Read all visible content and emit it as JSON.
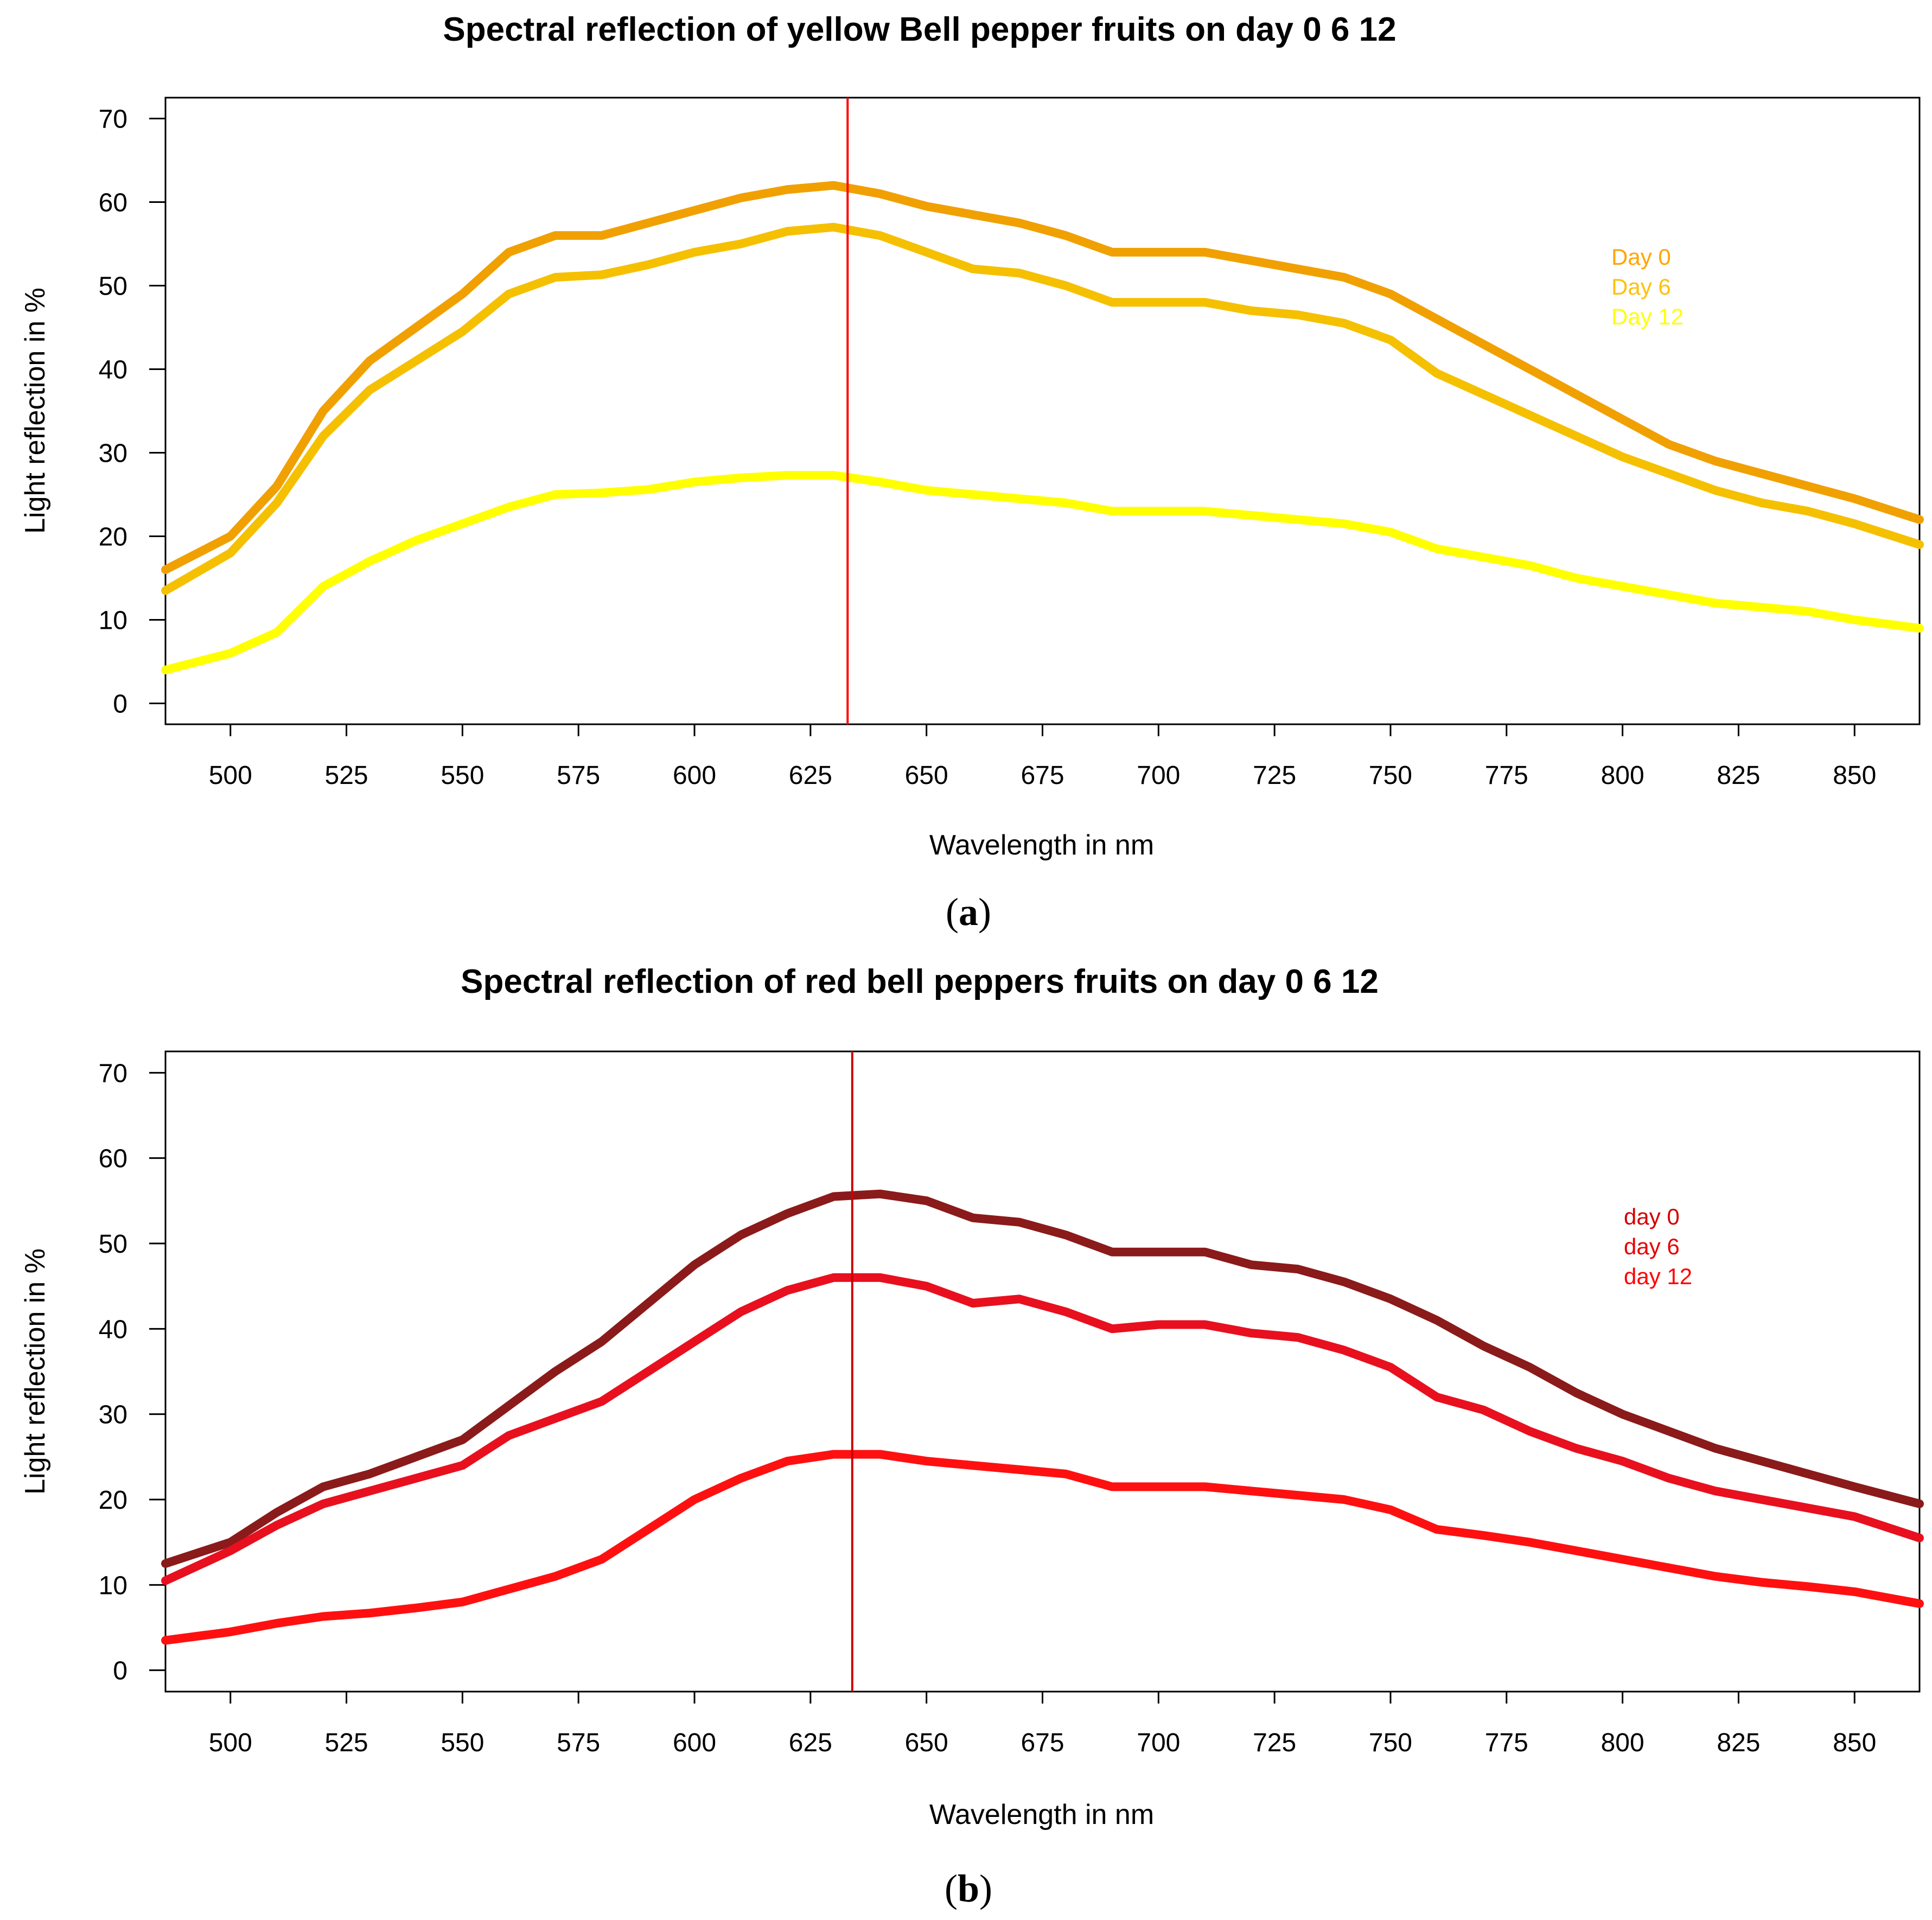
{
  "chart_data": [
    {
      "type": "line",
      "panel_label_open": "(",
      "panel_label_letter": "a",
      "panel_label_close": ")",
      "title": "Spectral reflection of yellow Bell pepper fruits on day 0  6  12",
      "xlabel": "Wavelength in nm",
      "ylabel": "Light reflection in %",
      "xlim": [
        486,
        864
      ],
      "ylim": [
        -2.5,
        72.5
      ],
      "xticks": [
        500,
        525,
        550,
        575,
        600,
        625,
        650,
        675,
        700,
        725,
        750,
        775,
        800,
        825,
        850
      ],
      "yticks": [
        0,
        10,
        20,
        30,
        40,
        50,
        60,
        70
      ],
      "vline_x": 633,
      "vline_color": "#ff0000",
      "legend_position": "right",
      "legend": [
        {
          "label": "Day 0",
          "color": "#ffa500"
        },
        {
          "label": "Day 6",
          "color": "#ffc107"
        },
        {
          "label": "Day 12",
          "color": "#ffff00"
        }
      ],
      "x": [
        486,
        500,
        510,
        520,
        530,
        540,
        550,
        560,
        570,
        580,
        590,
        600,
        610,
        620,
        630,
        640,
        650,
        660,
        670,
        680,
        690,
        700,
        710,
        720,
        730,
        740,
        750,
        760,
        770,
        780,
        790,
        800,
        810,
        820,
        830,
        840,
        850,
        864
      ],
      "series": [
        {
          "name": "Day 0",
          "color": "#f0a000",
          "values": [
            16,
            20,
            26,
            35,
            41,
            45,
            49,
            54,
            56,
            56,
            57.5,
            59,
            60.5,
            61.5,
            62,
            61,
            59.5,
            58.5,
            57.5,
            56,
            54,
            54,
            54,
            53,
            52,
            51,
            49,
            46,
            43,
            40,
            37,
            34,
            31,
            29,
            27.5,
            26,
            24.5,
            22
          ]
        },
        {
          "name": "Day 6",
          "color": "#f5c000",
          "values": [
            13.5,
            18,
            24,
            32,
            37.5,
            41,
            44.5,
            49,
            51,
            51.3,
            52.5,
            54,
            55,
            56.5,
            57,
            56,
            54,
            52,
            51.5,
            50,
            48,
            48,
            48,
            47,
            46.5,
            45.5,
            43.5,
            39.5,
            37,
            34.5,
            32,
            29.5,
            27.5,
            25.5,
            24,
            23,
            21.5,
            19
          ]
        },
        {
          "name": "Day 12",
          "color": "#ffff00",
          "values": [
            4,
            6,
            8.5,
            14,
            17,
            19.5,
            21.5,
            23.5,
            25,
            25.2,
            25.6,
            26.5,
            27,
            27.3,
            27.3,
            26.5,
            25.5,
            25,
            24.5,
            24,
            23,
            23,
            23,
            22.5,
            22,
            21.5,
            20.5,
            18.5,
            17.5,
            16.5,
            15,
            14,
            13,
            12,
            11.5,
            11,
            10,
            9
          ]
        }
      ]
    },
    {
      "type": "line",
      "panel_label_open": "(",
      "panel_label_letter": "b",
      "panel_label_close": ")",
      "title": "Spectral reflection of red bell peppers fruits on day 0  6  12",
      "xlabel": "Wavelength in nm",
      "ylabel": "Light reflection in %",
      "xlim": [
        486,
        864
      ],
      "ylim": [
        -2.5,
        72.5
      ],
      "xticks": [
        500,
        525,
        550,
        575,
        600,
        625,
        650,
        675,
        700,
        725,
        750,
        775,
        800,
        825,
        850
      ],
      "yticks": [
        0,
        10,
        20,
        30,
        40,
        50,
        60,
        70
      ],
      "vline_x": 634,
      "vline_color": "#cc0000",
      "legend_position": "right",
      "legend": [
        {
          "label": "day 0",
          "color": "#d40000"
        },
        {
          "label": "day 6",
          "color": "#e80000"
        },
        {
          "label": "day 12",
          "color": "#ff0000"
        }
      ],
      "x": [
        486,
        500,
        510,
        520,
        530,
        540,
        550,
        560,
        570,
        580,
        590,
        600,
        610,
        620,
        630,
        640,
        650,
        660,
        670,
        680,
        690,
        700,
        710,
        720,
        730,
        740,
        750,
        760,
        770,
        780,
        790,
        800,
        810,
        820,
        830,
        840,
        850,
        864
      ],
      "series": [
        {
          "name": "day 0",
          "color": "#8b1a1a",
          "values": [
            12.5,
            15,
            18.5,
            21.5,
            23,
            25,
            27,
            31,
            35,
            38.5,
            43,
            47.5,
            51,
            53.5,
            55.5,
            55.8,
            55,
            53,
            52.5,
            51,
            49,
            49,
            49,
            47.5,
            47,
            45.5,
            43.5,
            41,
            38,
            35.5,
            32.5,
            30,
            28,
            26,
            24.5,
            23,
            21.5,
            19.5
          ]
        },
        {
          "name": "day 6",
          "color": "#e8101e",
          "values": [
            10.5,
            14,
            17,
            19.5,
            21,
            22.5,
            24,
            27.5,
            29.5,
            31.5,
            35,
            38.5,
            42,
            44.5,
            46,
            46,
            45,
            43,
            43.5,
            42,
            40,
            40.5,
            40.5,
            39.5,
            39,
            37.5,
            35.5,
            32,
            30.5,
            28,
            26,
            24.5,
            22.5,
            21,
            20,
            19,
            18,
            15.5
          ]
        },
        {
          "name": "day 12",
          "color": "#ff1010",
          "values": [
            3.5,
            4.5,
            5.5,
            6.3,
            6.7,
            7.3,
            8,
            9.5,
            11,
            13,
            16.5,
            20,
            22.5,
            24.5,
            25.3,
            25.3,
            24.5,
            24,
            23.5,
            23,
            21.5,
            21.5,
            21.5,
            21,
            20.5,
            20,
            18.8,
            16.5,
            15.8,
            15,
            14,
            13,
            12,
            11,
            10.3,
            9.8,
            9.2,
            7.8
          ]
        }
      ]
    }
  ]
}
